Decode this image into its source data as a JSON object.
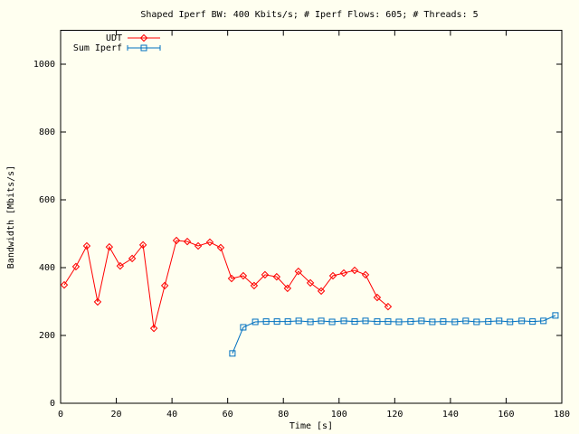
{
  "chart_data": {
    "type": "line",
    "title": "Shaped Iperf BW: 400 Kbits/s; # Iperf Flows: 605; # Threads: 5",
    "x_label": "Time [s]",
    "y_label": "Bandwidth [Mbits/s]",
    "xlim": [
      0,
      180
    ],
    "xticks": [
      0,
      20,
      40,
      60,
      80,
      100,
      120,
      140,
      160,
      180
    ],
    "ylim": [
      0,
      1100
    ],
    "yticks": [
      0,
      200,
      400,
      600,
      800,
      1000
    ],
    "legend": "top-left",
    "series": [
      {
        "name": "UDT",
        "color": "#ff0000",
        "marker": "diamond",
        "x": [
          1.3,
          5.5,
          9.4,
          13.3,
          17.5,
          21.4,
          25.7,
          29.6,
          33.5,
          37.4,
          41.6,
          45.5,
          49.4,
          53.6,
          57.5,
          61.4,
          65.6,
          69.5,
          73.4,
          77.6,
          81.5,
          85.4,
          89.7,
          93.6,
          97.8,
          101.7,
          105.6,
          109.5,
          113.7,
          117.6
        ],
        "values": [
          349,
          403,
          464,
          299,
          461,
          405,
          427,
          467,
          221,
          347,
          480,
          477,
          464,
          475,
          459,
          368,
          376,
          347,
          379,
          373,
          339,
          389,
          355,
          331,
          376,
          384,
          392,
          379,
          312,
          285
        ]
      },
      {
        "name": "Sum Iperf",
        "color": "#0070c0",
        "marker": "square",
        "x": [
          61.7,
          65.6,
          69.9,
          73.8,
          77.7,
          81.6,
          85.5,
          89.7,
          93.6,
          97.5,
          101.7,
          105.6,
          109.5,
          113.7,
          117.6,
          121.5,
          125.7,
          129.6,
          133.5,
          137.4,
          141.6,
          145.5,
          149.4,
          153.6,
          157.5,
          161.4,
          165.6,
          169.5,
          173.4,
          177.7
        ],
        "values": [
          147,
          224,
          240,
          241,
          241,
          241,
          243,
          240,
          243,
          240,
          243,
          241,
          243,
          241,
          241,
          240,
          241,
          243,
          240,
          241,
          240,
          243,
          240,
          241,
          243,
          240,
          243,
          241,
          243,
          259
        ]
      }
    ]
  }
}
